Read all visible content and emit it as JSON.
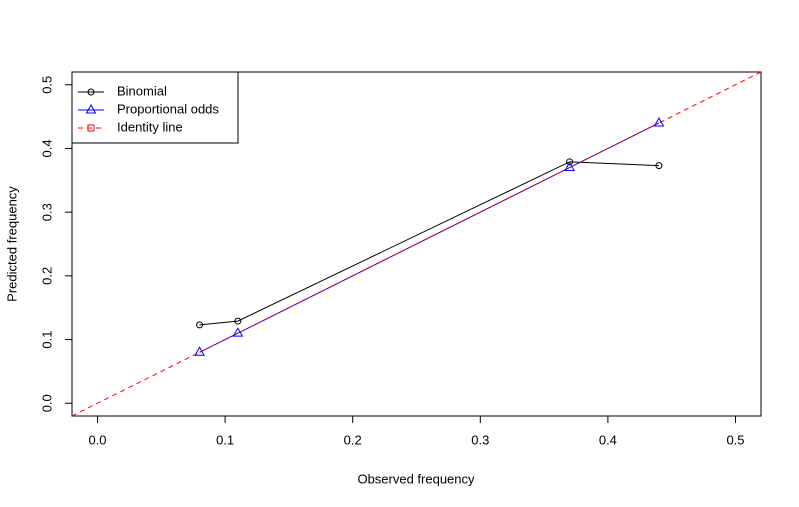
{
  "chart_data": {
    "type": "line",
    "xlabel": "Observed frequency",
    "ylabel": "Predicted frequency",
    "xlim": [
      -0.02,
      0.52
    ],
    "ylim": [
      -0.02,
      0.52
    ],
    "xticks": [
      {
        "value": 0,
        "label": "0.0"
      },
      0.1,
      0.2,
      0.3,
      0.4,
      0.5
    ],
    "yticks": [
      {
        "value": 0,
        "label": "0.0"
      },
      0.1,
      0.2,
      0.3,
      0.4,
      0.5
    ],
    "series": [
      {
        "name": "Binomial",
        "color": "#000000",
        "marker": "circle",
        "x": [
          0.08,
          0.11,
          0.37,
          0.44
        ],
        "values": [
          0.123,
          0.129,
          0.379,
          0.373
        ]
      },
      {
        "name": "Proportional odds",
        "color": "#0000ff",
        "marker": "triangle",
        "x": [
          0.08,
          0.11,
          0.37,
          0.44
        ],
        "values": [
          0.08,
          0.11,
          0.37,
          0.44
        ]
      }
    ],
    "reference_line": {
      "name": "Identity line",
      "color": "#ff0000",
      "marker": "square",
      "slope": 1,
      "intercept": 0
    },
    "legend": "top-left"
  }
}
